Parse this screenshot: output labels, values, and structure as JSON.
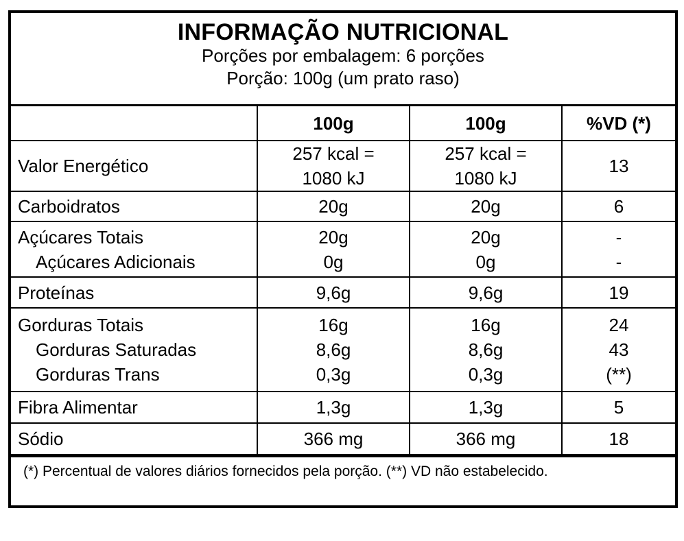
{
  "title": "INFORMAÇÃO NUTRICIONAL",
  "servings_per_pack": "Porções por embalagem: 6 porções",
  "serving_size": "Porção: 100g (um prato raso)",
  "columns": [
    "",
    "100g",
    "100g",
    "%VD (*)"
  ],
  "rows": [
    {
      "labels": [
        "Valor Energético"
      ],
      "col1": [
        "257 kcal =",
        "1080 kJ"
      ],
      "col2": [
        "257 kcal =",
        "1080 kJ"
      ],
      "vd": [
        "13"
      ]
    },
    {
      "labels": [
        "Carboidratos"
      ],
      "col1": [
        "20g"
      ],
      "col2": [
        "20g"
      ],
      "vd": [
        "6"
      ]
    },
    {
      "labels": [
        "Açúcares Totais",
        "Açúcares Adicionais"
      ],
      "col1": [
        "20g",
        "0g"
      ],
      "col2": [
        "20g",
        "0g"
      ],
      "vd": [
        "-",
        "-"
      ]
    },
    {
      "labels": [
        "Proteínas"
      ],
      "col1": [
        "9,6g"
      ],
      "col2": [
        "9,6g"
      ],
      "vd": [
        "19"
      ]
    },
    {
      "labels": [
        "Gorduras Totais",
        "Gorduras Saturadas",
        "Gorduras Trans"
      ],
      "col1": [
        "16g",
        "8,6g",
        "0,3g"
      ],
      "col2": [
        "16g",
        "8,6g",
        "0,3g"
      ],
      "vd": [
        "24",
        "43",
        "(**)"
      ]
    },
    {
      "labels": [
        "Fibra Alimentar"
      ],
      "col1": [
        "1,3g"
      ],
      "col2": [
        "1,3g"
      ],
      "vd": [
        "5"
      ]
    },
    {
      "labels": [
        "Sódio"
      ],
      "col1": [
        "366 mg"
      ],
      "col2": [
        "366 mg"
      ],
      "vd": [
        "18"
      ]
    }
  ],
  "footnote": "(*) Percentual de valores diários fornecidos pela porção. (**) VD não estabelecido."
}
